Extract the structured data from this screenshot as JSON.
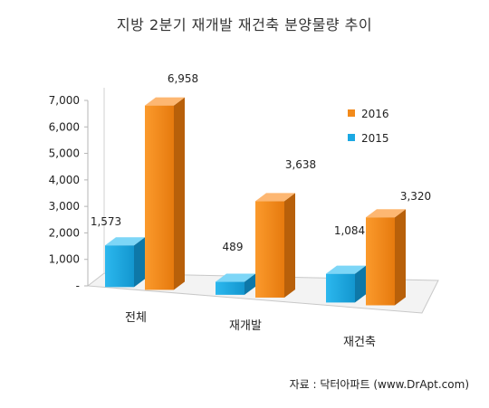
{
  "chart_data": {
    "type": "bar",
    "title": "지방 2분기 재개발 재건축 분양물량 추이",
    "categories": [
      "전체",
      "재개발",
      "재건축"
    ],
    "series": [
      {
        "name": "2015",
        "values": [
          1573,
          489,
          1084
        ],
        "labels": [
          "1,573",
          "489",
          "1,084"
        ],
        "color": "#1BA8E3"
      },
      {
        "name": "2016",
        "values": [
          6958,
          3638,
          3320
        ],
        "labels": [
          "6,958",
          "3,638",
          "3,320"
        ],
        "color": "#F28A1B"
      }
    ],
    "yticks": [
      "-",
      "1,000",
      "2,000",
      "3,000",
      "4,000",
      "5,000",
      "6,000",
      "7,000"
    ],
    "ylim": [
      0,
      7000
    ],
    "legend_position": "right",
    "grid": false
  },
  "source": "자료 : 닥터아파트 (www.DrApt.com)"
}
